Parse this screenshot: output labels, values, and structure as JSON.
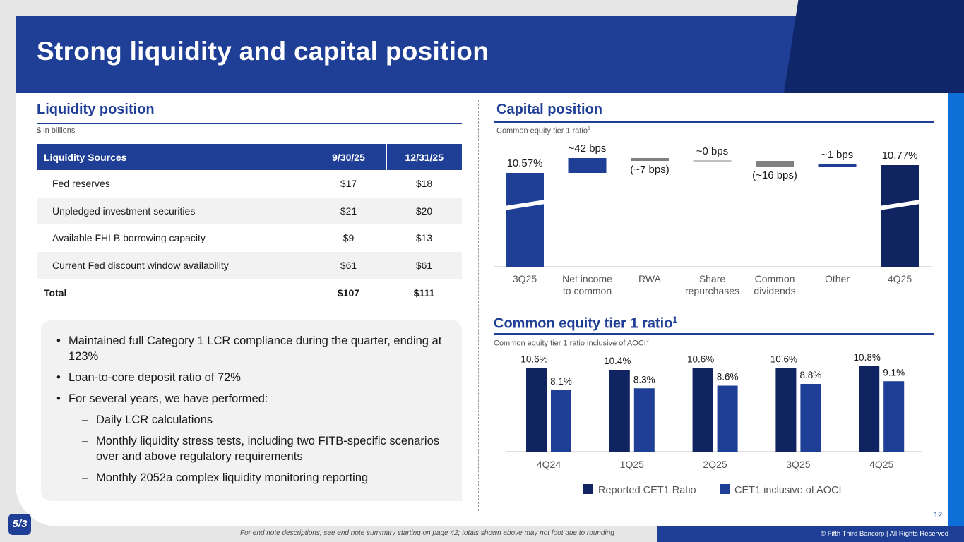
{
  "title": "Strong liquidity and capital position",
  "liquidity": {
    "section_title": "Liquidity position",
    "unit_note": "$ in billions",
    "headers": [
      "Liquidity Sources",
      "9/30/25",
      "12/31/25"
    ],
    "rows": [
      [
        "Fed reserves",
        "$17",
        "$18"
      ],
      [
        "Unpledged investment securities",
        "$21",
        "$20"
      ],
      [
        "Available FHLB borrowing capacity",
        "$9",
        "$13"
      ],
      [
        "Current Fed discount window availability",
        "$61",
        "$61"
      ]
    ],
    "total": [
      "Total",
      "$107",
      "$111"
    ]
  },
  "bullets": {
    "b1": "Maintained full Category 1 LCR compliance during the quarter, ending at 123%",
    "b2": "Loan-to-core deposit ratio of 72%",
    "b3": "For several years, we have performed:",
    "s1": "Daily LCR calculations",
    "s2": "Monthly liquidity stress tests, including two FITB-specific scenarios over and above regulatory requirements",
    "s3": "Monthly 2052a complex liquidity monitoring reporting"
  },
  "capital": {
    "section_title": "Capital position",
    "subnote": "Common equity tier 1 ratio",
    "subnote_sup": "1"
  },
  "cet1": {
    "section_title": "Common equity tier 1 ratio",
    "section_sup": "1",
    "subnote": "Common equity tier 1 ratio inclusive of AOCI",
    "subnote_sup": "2"
  },
  "chart_data": [
    {
      "type": "bar",
      "subtype": "waterfall",
      "title": "Capital position",
      "ylabel": "Common equity tier 1 ratio (%)",
      "categories": [
        "3Q25",
        "Net income to common",
        "RWA",
        "Share repurchases",
        "Common dividends",
        "Other",
        "4Q25"
      ],
      "category_lines": [
        [
          "3Q25"
        ],
        [
          "Net income",
          "to common"
        ],
        [
          "RWA"
        ],
        [
          "Share",
          "repurchases"
        ],
        [
          "Common",
          "dividends"
        ],
        [
          "Other"
        ],
        [
          "4Q25"
        ]
      ],
      "values_bps": [
        null,
        42,
        -7,
        0,
        -16,
        1,
        null
      ],
      "start_value": 10.57,
      "end_value": 10.77,
      "labels": [
        "10.57%",
        "~42 bps",
        "(~7 bps)",
        "~0 bps",
        "(~16 bps)",
        "~1 bps",
        "10.77%"
      ],
      "axis_break": true,
      "colors": {
        "start": "#1e3f95",
        "increase": "#1e3f95",
        "decrease": "#808080",
        "end": "#0f2460"
      }
    },
    {
      "type": "bar",
      "title": "Common equity tier 1 ratio",
      "categories": [
        "4Q24",
        "1Q25",
        "2Q25",
        "3Q25",
        "4Q25"
      ],
      "ylim": [
        0,
        12
      ],
      "series": [
        {
          "name": "Reported CET1 Ratio",
          "color": "#0f2460",
          "values": [
            10.6,
            10.4,
            10.6,
            10.6,
            10.8
          ],
          "labels": [
            "10.6%",
            "10.4%",
            "10.6%",
            "10.6%",
            "10.8%"
          ]
        },
        {
          "name": "CET1 inclusive of AOCI",
          "color": "#1e3f95",
          "values": [
            8.1,
            8.3,
            8.6,
            8.8,
            9.1
          ],
          "labels": [
            "8.1%",
            "8.3%",
            "8.6%",
            "8.8%",
            "9.1%"
          ]
        }
      ]
    }
  ],
  "footer": {
    "note": "For end note descriptions, see end note summary starting on page 42; totals shown above may not foot due to rounding",
    "copyright": "© Fifth Third Bancorp | All Rights Reserved",
    "page": "12",
    "logo_text": "5/3"
  }
}
